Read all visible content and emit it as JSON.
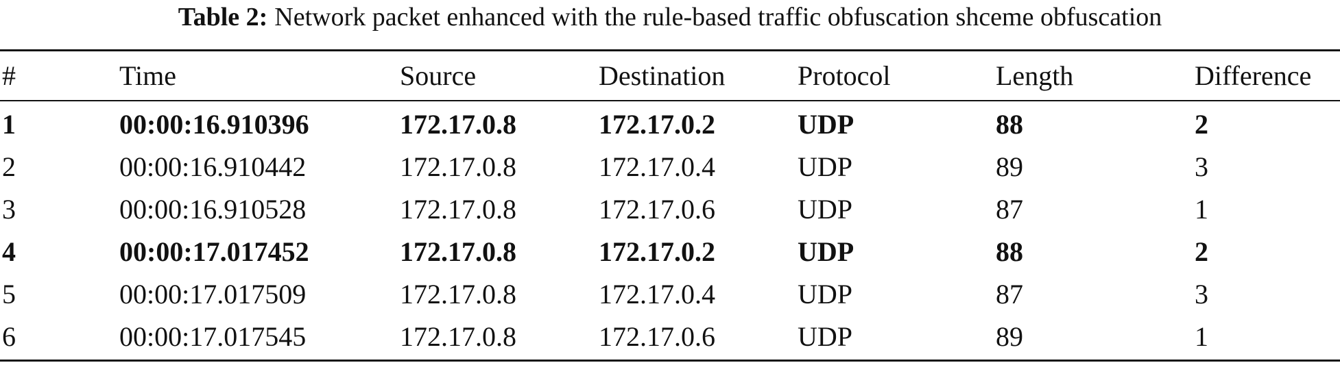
{
  "caption": {
    "label": "Table 2:",
    "text": "Network packet enhanced with the rule-based traffic obfuscation shceme obfuscation"
  },
  "table": {
    "headers": [
      "#",
      "Time",
      "Source",
      "Destination",
      "Protocol",
      "Length",
      "Difference"
    ],
    "rows": [
      {
        "cells": [
          "1",
          "00:00:16.910396",
          "172.17.0.8",
          "172.17.0.2",
          "UDP",
          "88",
          "2"
        ],
        "bold": true
      },
      {
        "cells": [
          "2",
          "00:00:16.910442",
          "172.17.0.8",
          "172.17.0.4",
          "UDP",
          "89",
          "3"
        ],
        "bold": false
      },
      {
        "cells": [
          "3",
          "00:00:16.910528",
          "172.17.0.8",
          "172.17.0.6",
          "UDP",
          "87",
          "1"
        ],
        "bold": false
      },
      {
        "cells": [
          "4",
          "00:00:17.017452",
          "172.17.0.8",
          "172.17.0.2",
          "UDP",
          "88",
          "2"
        ],
        "bold": true
      },
      {
        "cells": [
          "5",
          "00:00:17.017509",
          "172.17.0.8",
          "172.17.0.4",
          "UDP",
          "87",
          "3"
        ],
        "bold": false
      },
      {
        "cells": [
          "6",
          "00:00:17.017545",
          "172.17.0.8",
          "172.17.0.6",
          "UDP",
          "89",
          "1"
        ],
        "bold": false
      }
    ]
  }
}
